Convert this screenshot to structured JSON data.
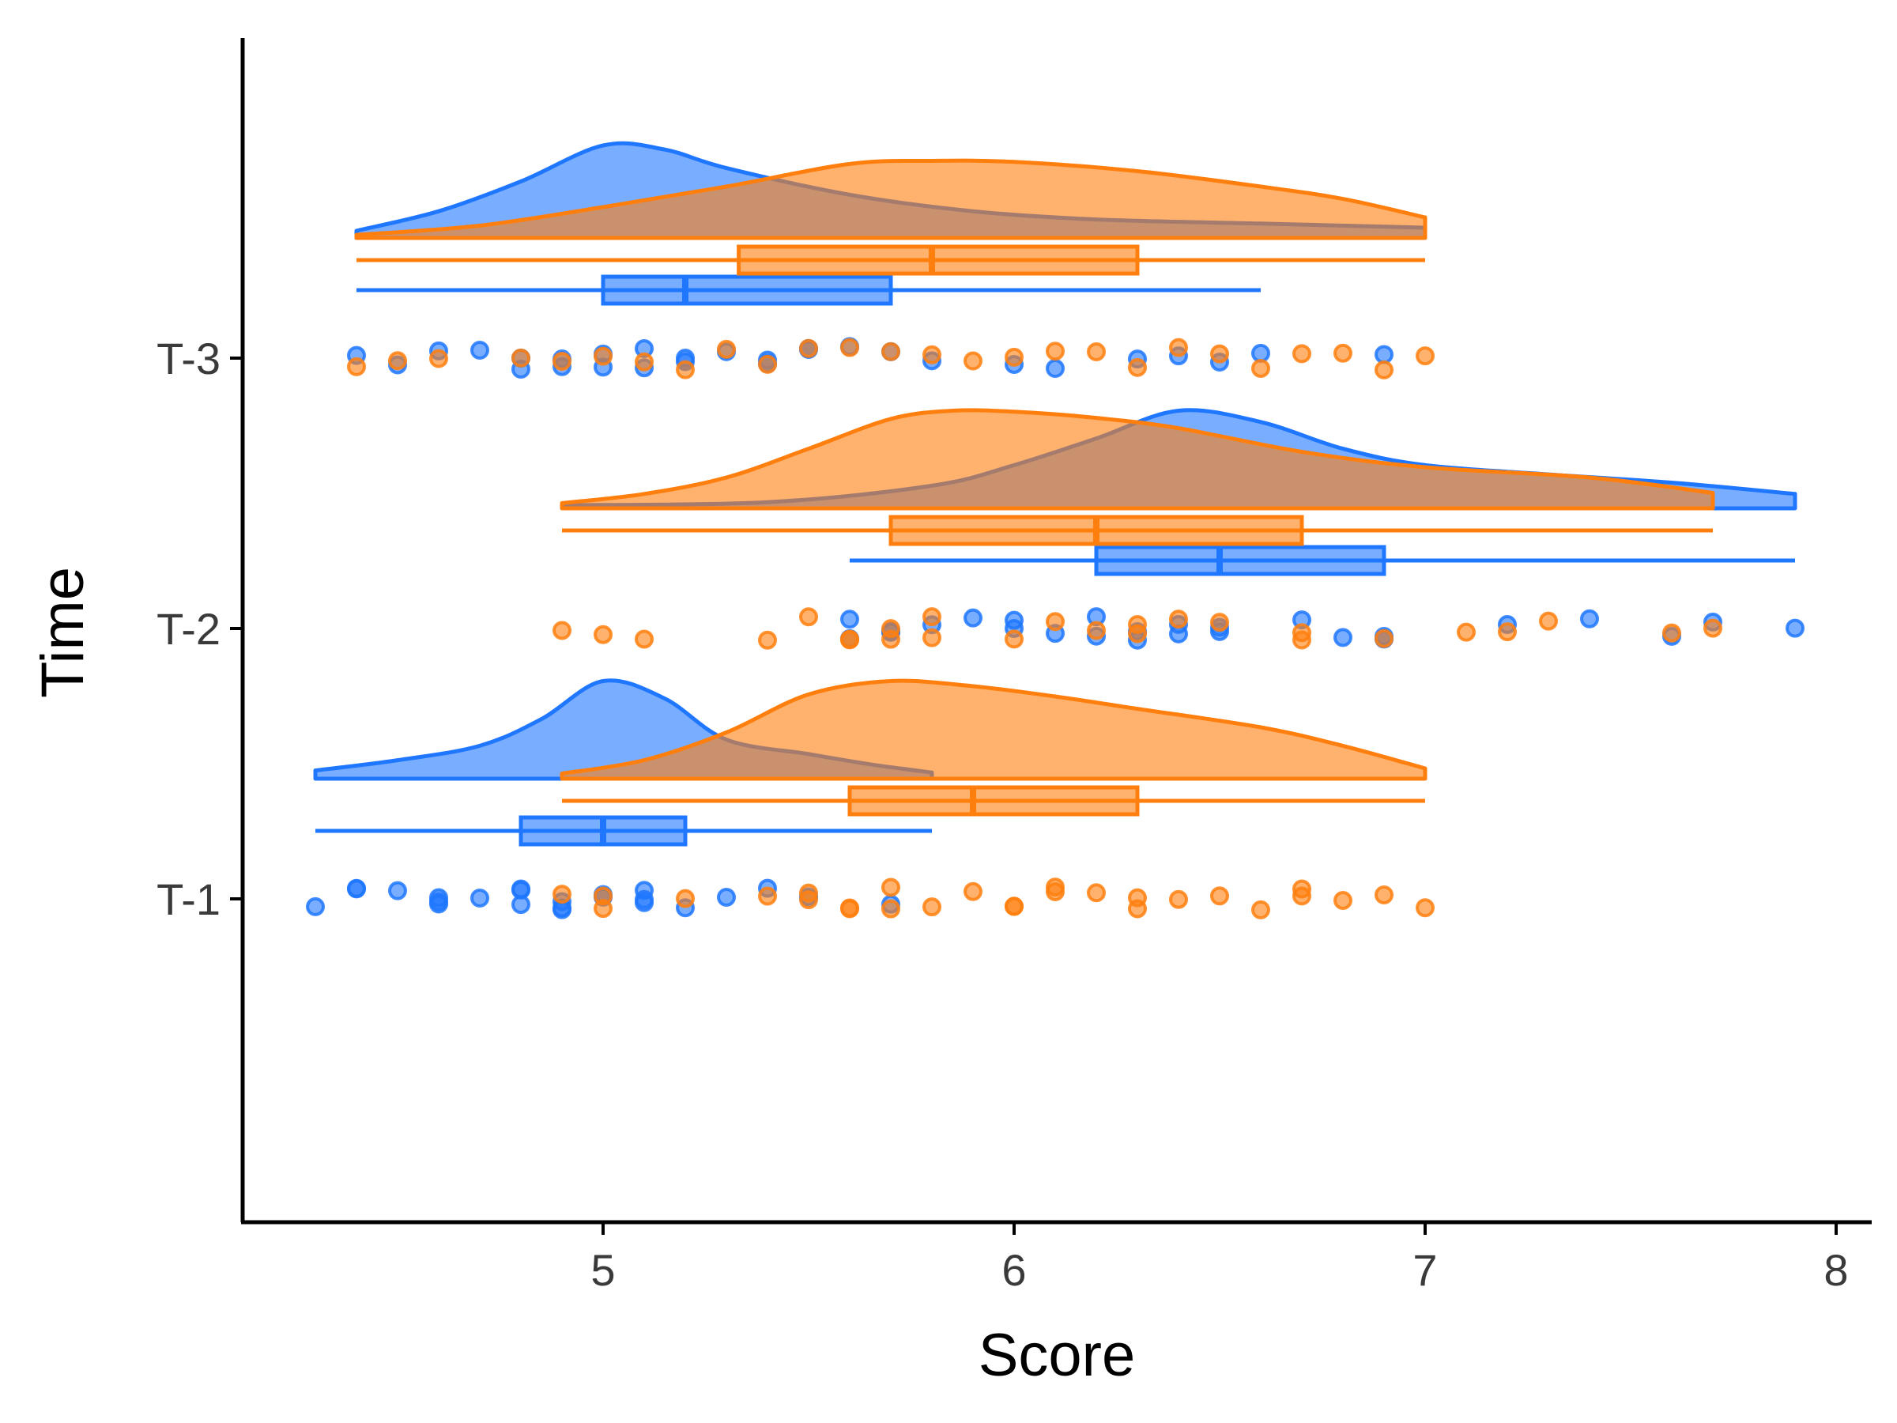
{
  "chart_data": {
    "type": "raincloud",
    "xlabel": "Score",
    "ylabel": "Time",
    "xlim": [
      4.1,
      8.1
    ],
    "x_ticks": [
      "5",
      "6",
      "7",
      "8"
    ],
    "categories": [
      "T-1",
      "T-2",
      "T-3"
    ],
    "grid": false,
    "legend": "none",
    "colors": {
      "blue": "#1F77FF",
      "orange": "#FF7F0E"
    },
    "series": [
      {
        "color_key": "blue",
        "groups": [
          {
            "category": "T-1",
            "box": {
              "min": 4.3,
              "q1": 4.8,
              "median": 5.0,
              "q3": 5.2,
              "max": 5.8
            },
            "density": [
              [
                4.3,
                0.08
              ],
              [
                4.5,
                0.18
              ],
              [
                4.7,
                0.32
              ],
              [
                4.85,
                0.58
              ],
              [
                5.0,
                0.95
              ],
              [
                5.15,
                0.78
              ],
              [
                5.3,
                0.38
              ],
              [
                5.5,
                0.24
              ],
              [
                5.65,
                0.14
              ],
              [
                5.8,
                0.06
              ]
            ],
            "points": [
              4.3,
              4.4,
              4.4,
              4.5,
              4.6,
              4.6,
              4.6,
              4.7,
              4.8,
              4.8,
              4.8,
              4.9,
              4.9,
              4.9,
              5.0,
              5.0,
              5.1,
              5.1,
              5.1,
              5.2,
              5.3,
              5.4,
              5.5,
              5.7
            ]
          },
          {
            "category": "T-2",
            "box": {
              "min": 5.6,
              "q1": 6.2,
              "median": 6.5,
              "q3": 6.9,
              "max": 7.9
            },
            "density": [
              [
                4.9,
                0.03
              ],
              [
                5.4,
                0.06
              ],
              [
                5.8,
                0.22
              ],
              [
                6.0,
                0.42
              ],
              [
                6.2,
                0.68
              ],
              [
                6.4,
                0.95
              ],
              [
                6.6,
                0.84
              ],
              [
                6.8,
                0.58
              ],
              [
                7.0,
                0.42
              ],
              [
                7.3,
                0.33
              ],
              [
                7.6,
                0.25
              ],
              [
                7.9,
                0.14
              ]
            ],
            "points": [
              5.6,
              5.6,
              5.7,
              5.7,
              5.8,
              5.9,
              6.0,
              6.0,
              6.1,
              6.2,
              6.2,
              6.3,
              6.3,
              6.4,
              6.4,
              6.5,
              6.5,
              6.7,
              6.8,
              6.9,
              6.9,
              7.2,
              7.4,
              7.6,
              7.7,
              7.9
            ]
          },
          {
            "category": "T-3",
            "box": {
              "min": 4.4,
              "q1": 5.0,
              "median": 5.2,
              "q3": 5.7,
              "max": 6.6
            },
            "density": [
              [
                4.4,
                0.07
              ],
              [
                4.6,
                0.26
              ],
              [
                4.8,
                0.55
              ],
              [
                5.0,
                0.9
              ],
              [
                5.15,
                0.86
              ],
              [
                5.3,
                0.68
              ],
              [
                5.6,
                0.42
              ],
              [
                5.9,
                0.26
              ],
              [
                6.2,
                0.18
              ],
              [
                6.6,
                0.14
              ],
              [
                7.0,
                0.1
              ]
            ],
            "points": [
              4.4,
              4.5,
              4.6,
              4.7,
              4.8,
              4.8,
              4.9,
              4.9,
              5.0,
              5.0,
              5.1,
              5.1,
              5.2,
              5.2,
              5.3,
              5.4,
              5.4,
              5.5,
              5.5,
              5.6,
              5.7,
              5.8,
              6.0,
              6.1,
              6.3,
              6.4,
              6.5,
              6.6,
              6.9
            ]
          }
        ]
      },
      {
        "color_key": "orange",
        "groups": [
          {
            "category": "T-1",
            "box": {
              "min": 4.9,
              "q1": 5.6,
              "median": 5.9,
              "q3": 6.3,
              "max": 7.0
            },
            "density": [
              [
                4.9,
                0.05
              ],
              [
                5.1,
                0.18
              ],
              [
                5.3,
                0.45
              ],
              [
                5.5,
                0.82
              ],
              [
                5.7,
                0.95
              ],
              [
                5.9,
                0.9
              ],
              [
                6.1,
                0.8
              ],
              [
                6.3,
                0.68
              ],
              [
                6.6,
                0.5
              ],
              [
                6.8,
                0.32
              ],
              [
                7.0,
                0.1
              ]
            ],
            "points": [
              4.9,
              5.0,
              5.0,
              5.2,
              5.4,
              5.5,
              5.5,
              5.6,
              5.6,
              5.7,
              5.7,
              5.8,
              5.9,
              6.0,
              6.0,
              6.1,
              6.1,
              6.2,
              6.3,
              6.3,
              6.4,
              6.5,
              6.6,
              6.7,
              6.7,
              6.8,
              6.9,
              7.0
            ]
          },
          {
            "category": "T-2",
            "box": {
              "min": 4.9,
              "q1": 5.7,
              "median": 6.2,
              "q3": 6.7,
              "max": 7.7
            },
            "density": [
              [
                4.9,
                0.05
              ],
              [
                5.1,
                0.14
              ],
              [
                5.3,
                0.3
              ],
              [
                5.5,
                0.58
              ],
              [
                5.7,
                0.87
              ],
              [
                5.85,
                0.95
              ],
              [
                6.0,
                0.94
              ],
              [
                6.2,
                0.88
              ],
              [
                6.4,
                0.78
              ],
              [
                6.7,
                0.55
              ],
              [
                7.0,
                0.4
              ],
              [
                7.4,
                0.3
              ],
              [
                7.7,
                0.15
              ]
            ],
            "points": [
              4.9,
              5.0,
              5.1,
              5.4,
              5.5,
              5.6,
              5.6,
              5.7,
              5.7,
              5.8,
              5.8,
              6.0,
              6.1,
              6.2,
              6.3,
              6.3,
              6.4,
              6.5,
              6.7,
              6.7,
              6.9,
              7.1,
              7.2,
              7.3,
              7.6,
              7.7
            ]
          },
          {
            "category": "T-3",
            "box": {
              "min": 4.4,
              "q1": 5.33,
              "median": 5.8,
              "q3": 6.3,
              "max": 7.0
            },
            "density": [
              [
                4.4,
                0.03
              ],
              [
                4.7,
                0.12
              ],
              [
                5.0,
                0.3
              ],
              [
                5.3,
                0.5
              ],
              [
                5.6,
                0.72
              ],
              [
                5.8,
                0.75
              ],
              [
                6.0,
                0.74
              ],
              [
                6.3,
                0.65
              ],
              [
                6.6,
                0.5
              ],
              [
                6.8,
                0.38
              ],
              [
                7.0,
                0.2
              ]
            ],
            "points": [
              4.4,
              4.5,
              4.6,
              4.8,
              4.9,
              5.0,
              5.1,
              5.2,
              5.3,
              5.4,
              5.5,
              5.6,
              5.7,
              5.8,
              5.9,
              6.0,
              6.1,
              6.2,
              6.3,
              6.4,
              6.5,
              6.6,
              6.7,
              6.8,
              6.9,
              7.0
            ]
          }
        ]
      }
    ]
  }
}
